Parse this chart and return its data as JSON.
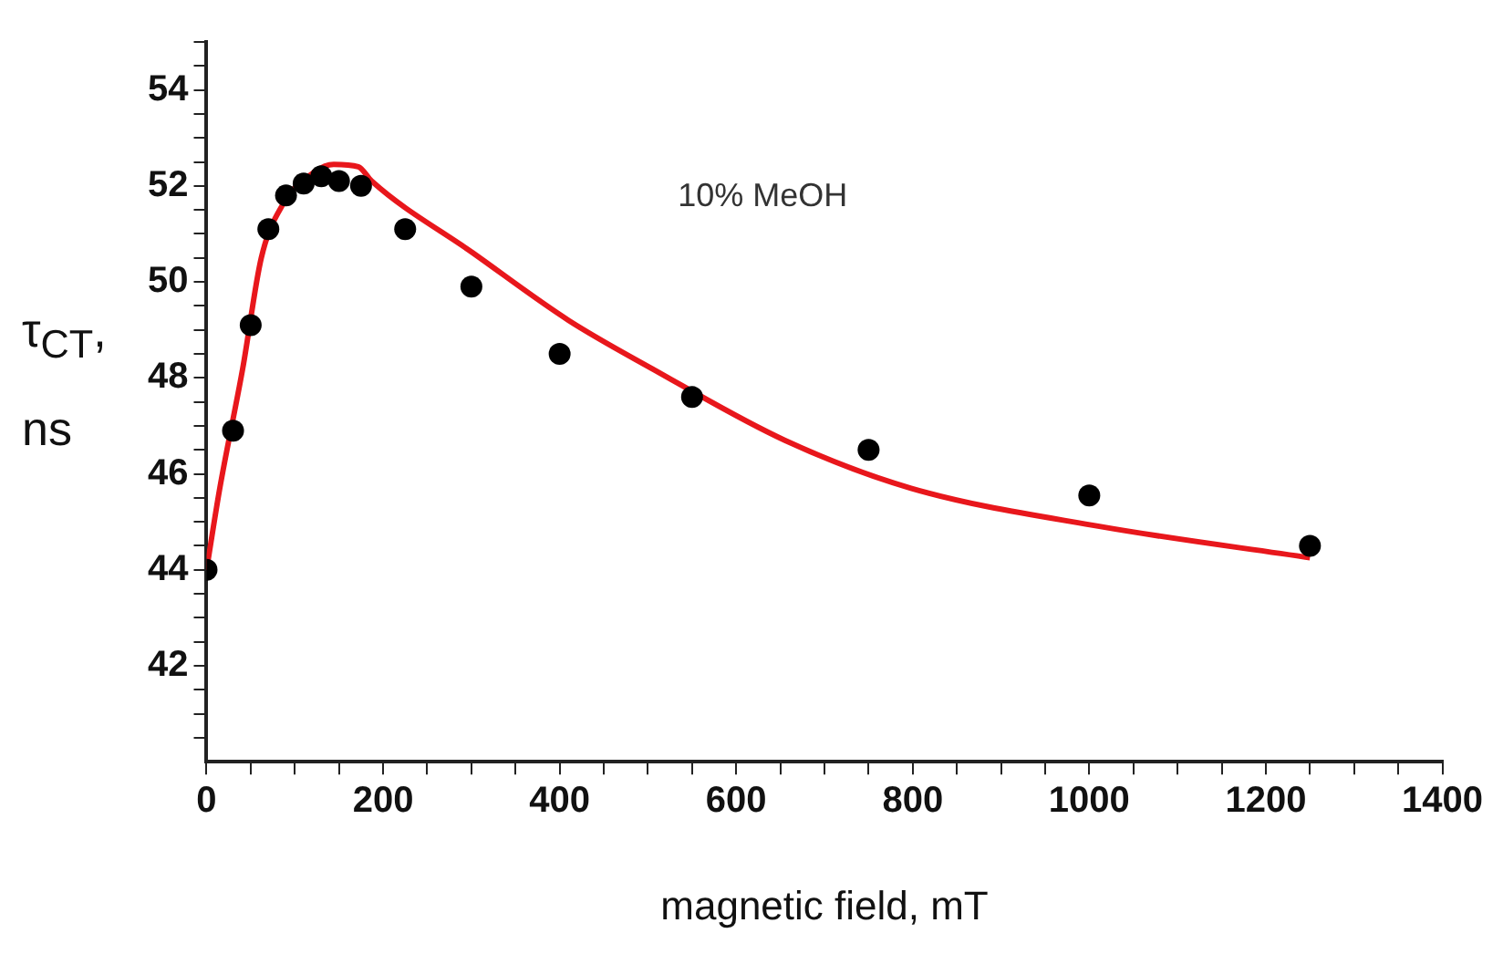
{
  "chart_data": {
    "type": "scatter",
    "xlabel": "magnetic field, mT",
    "ylabel": "τ$_{CT}$, ns",
    "annotations": [
      "10% MeOH"
    ],
    "xlim": [
      0,
      1400
    ],
    "ylim": [
      40,
      55
    ],
    "xticks": [
      0,
      {
        "value": 50,
        "label": null
      },
      200,
      {
        "value": 100,
        "label": null
      },
      {
        "value": 150,
        "label": null
      },
      {
        "value": 250,
        "label": null
      },
      {
        "value": 300,
        "label": null
      },
      {
        "value": 350,
        "label": null
      },
      400,
      {
        "value": 450,
        "label": null
      },
      {
        "value": 500,
        "label": null
      },
      {
        "value": 550,
        "label": null
      },
      600,
      {
        "value": 650,
        "label": null
      },
      {
        "value": 700,
        "label": null
      },
      {
        "value": 750,
        "label": null
      },
      800,
      {
        "value": 850,
        "label": null
      },
      {
        "value": 900,
        "label": null
      },
      {
        "value": 950,
        "label": null
      },
      1000,
      {
        "value": 1050,
        "label": null
      },
      {
        "value": 1100,
        "label": null
      },
      {
        "value": 1150,
        "label": null
      },
      1200,
      {
        "value": 1250,
        "label": null
      },
      {
        "value": 1300,
        "label": null
      },
      {
        "value": 1350,
        "label": null
      },
      1400
    ],
    "yticks": [
      {
        "value": 40.5,
        "label": null
      },
      {
        "value": 41,
        "label": null
      },
      {
        "value": 41.5,
        "label": null
      },
      42,
      {
        "value": 42.5,
        "label": null
      },
      {
        "value": 43,
        "label": null
      },
      {
        "value": 43.5,
        "label": null
      },
      44,
      {
        "value": 44.5,
        "label": null
      },
      {
        "value": 45,
        "label": null
      },
      {
        "value": 45.5,
        "label": null
      },
      46,
      {
        "value": 46.5,
        "label": null
      },
      {
        "value": 47,
        "label": null
      },
      {
        "value": 47.5,
        "label": null
      },
      48,
      {
        "value": 48.5,
        "label": null
      },
      {
        "value": 49,
        "label": null
      },
      {
        "value": 49.5,
        "label": null
      },
      50,
      {
        "value": 50.5,
        "label": null
      },
      {
        "value": 51,
        "label": null
      },
      {
        "value": 51.5,
        "label": null
      },
      52,
      {
        "value": 52.5,
        "label": null
      },
      {
        "value": 53,
        "label": null
      },
      {
        "value": 53.5,
        "label": null
      },
      54,
      {
        "value": 54.5,
        "label": null
      },
      {
        "value": 55,
        "label": null
      }
    ],
    "grid": false,
    "legend": false,
    "series": [
      {
        "type": "line",
        "color": "#e8171c",
        "marker": "none",
        "line_style": "solid",
        "x": [
          0,
          15,
          41,
          62,
          86,
          123,
          144,
          172,
          187,
          302,
          410,
          504,
          655,
          798,
          1013,
          1250
        ],
        "values": [
          44,
          45.7,
          48.2,
          50.5,
          51.6,
          52.3,
          52.45,
          52.4,
          52.1,
          50.6,
          49.2,
          48.2,
          46.7,
          45.7,
          44.9,
          44.25
        ]
      },
      {
        "type": "scatter",
        "color": "#000000",
        "marker": "circle",
        "x": [
          0,
          30,
          50,
          70,
          90,
          110,
          130,
          150,
          175,
          225,
          300,
          400,
          550,
          750,
          1000,
          1250
        ],
        "values": [
          44,
          46.9,
          49.1,
          51.1,
          51.8,
          52.05,
          52.2,
          52.1,
          52,
          51.1,
          49.9,
          48.5,
          47.6,
          46.5,
          45.55,
          44.5
        ]
      }
    ]
  }
}
